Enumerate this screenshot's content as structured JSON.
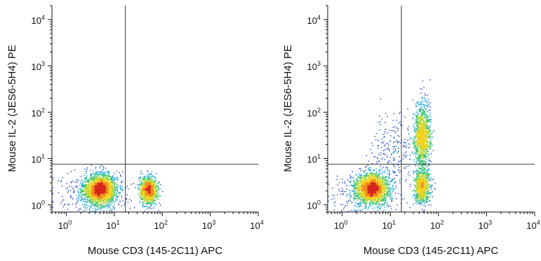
{
  "chart_data": [
    {
      "type": "scatter",
      "title": "",
      "xlabel": "Mouse CD3 (145-2C11) APC",
      "ylabel": "Mouse IL-2 (JES6-5H4) PE",
      "xscale": "log",
      "yscale": "log",
      "xlim": [
        0.5,
        10000
      ],
      "ylim": [
        0.7,
        20000
      ],
      "x_ticks": [
        {
          "base": "10",
          "exp": "0"
        },
        {
          "base": "10",
          "exp": "1"
        },
        {
          "base": "10",
          "exp": "2"
        },
        {
          "base": "10",
          "exp": "3"
        },
        {
          "base": "10",
          "exp": "4"
        }
      ],
      "y_ticks": [
        {
          "base": "10",
          "exp": "0"
        },
        {
          "base": "10",
          "exp": "1"
        },
        {
          "base": "10",
          "exp": "2"
        },
        {
          "base": "10",
          "exp": "3"
        },
        {
          "base": "10",
          "exp": "4"
        }
      ],
      "quadrant_gate": {
        "x": 17,
        "y": 7.5
      },
      "colormap": [
        "#1f3fbf",
        "#1aa3d9",
        "#2fbf71",
        "#b6d93a",
        "#f2d21b",
        "#f08a1c",
        "#d7261e"
      ],
      "populations": [
        {
          "x_center": 5,
          "y_center": 2.2,
          "x_spread_log": 0.17,
          "y_spread_log": 0.16,
          "weight": 2600
        },
        {
          "x_center": 50,
          "y_center": 2.1,
          "x_spread_log": 0.09,
          "y_spread_log": 0.14,
          "weight": 1300
        },
        {
          "x_center": 3,
          "y_center": 1.6,
          "x_spread_log": 0.35,
          "y_spread_log": 0.25,
          "weight": 300
        }
      ]
    },
    {
      "type": "scatter",
      "title": "",
      "xlabel": "Mouse CD3 (145-2C11) APC",
      "ylabel": "Mouse IL-2 (JES6-5H4) PE",
      "xscale": "log",
      "yscale": "log",
      "xlim": [
        0.5,
        10000
      ],
      "ylim": [
        0.7,
        20000
      ],
      "x_ticks": [
        {
          "base": "10",
          "exp": "0"
        },
        {
          "base": "10",
          "exp": "1"
        },
        {
          "base": "10",
          "exp": "2"
        },
        {
          "base": "10",
          "exp": "3"
        },
        {
          "base": "10",
          "exp": "4"
        }
      ],
      "y_ticks": [
        {
          "base": "10",
          "exp": "0"
        },
        {
          "base": "10",
          "exp": "1"
        },
        {
          "base": "10",
          "exp": "2"
        },
        {
          "base": "10",
          "exp": "3"
        },
        {
          "base": "10",
          "exp": "4"
        }
      ],
      "quadrant_gate": {
        "x": 17,
        "y": 7.5
      },
      "colormap": [
        "#1f3fbf",
        "#1aa3d9",
        "#2fbf71",
        "#b6d93a",
        "#f2d21b",
        "#f08a1c",
        "#d7261e"
      ],
      "populations": [
        {
          "x_center": 4,
          "y_center": 2.3,
          "x_spread_log": 0.17,
          "y_spread_log": 0.16,
          "weight": 2300
        },
        {
          "x_center": 45,
          "y_center": 2.5,
          "x_spread_log": 0.08,
          "y_spread_log": 0.18,
          "weight": 900
        },
        {
          "x_center": 45,
          "y_center": 30,
          "x_spread_log": 0.08,
          "y_spread_log": 0.35,
          "weight": 1400
        },
        {
          "x_center": 12,
          "y_center": 15,
          "x_spread_log": 0.25,
          "y_spread_log": 0.4,
          "weight": 250
        },
        {
          "x_center": 3,
          "y_center": 1.6,
          "x_spread_log": 0.35,
          "y_spread_log": 0.25,
          "weight": 300
        }
      ]
    }
  ]
}
